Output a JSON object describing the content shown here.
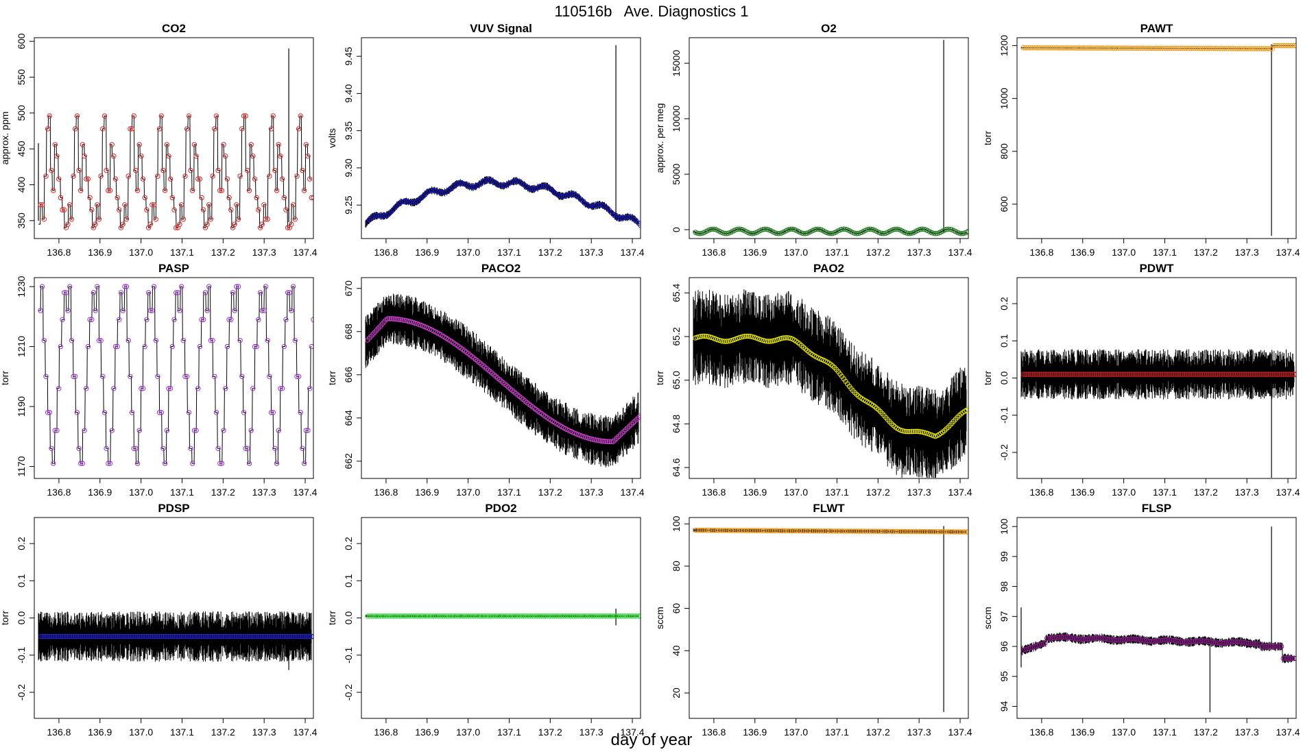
{
  "figure": {
    "title": "110516b   Ave. Diagnostics 1",
    "xlabel": "day of year"
  },
  "chart_data": [
    {
      "type": "line",
      "title": "CO2",
      "ylabel": "approx. ppm",
      "color": "#e02020",
      "xlim": [
        136.74,
        137.42
      ],
      "ylim": [
        325,
        605
      ],
      "yticks": [
        350,
        400,
        450,
        500,
        550,
        600
      ],
      "xticks": [
        136.8,
        136.9,
        137.0,
        137.1,
        137.2,
        137.3,
        137.4
      ],
      "pattern": "co2",
      "base": [
        340,
        500
      ],
      "noise": 0,
      "spikes": [
        {
          "x": 137.36,
          "lo": 348,
          "hi": 590
        },
        {
          "x": 136.75,
          "lo": 350,
          "hi": 458
        }
      ]
    },
    {
      "type": "line",
      "title": "VUV Signal",
      "ylabel": "volts",
      "color": "#1a1ab4",
      "xlim": [
        136.74,
        137.42
      ],
      "ylim": [
        9.205,
        9.475
      ],
      "yticks": [
        9.25,
        9.3,
        9.35,
        9.4,
        9.45
      ],
      "xticks": [
        136.8,
        136.9,
        137.0,
        137.1,
        137.2,
        137.3,
        137.4
      ],
      "pattern": "vuv",
      "noise": 0.004,
      "spikes": [
        {
          "x": 137.36,
          "lo": 9.23,
          "hi": 9.465
        }
      ]
    },
    {
      "type": "line",
      "title": "O2",
      "ylabel": "approx. per meg",
      "color": "#208020",
      "xlim": [
        136.74,
        137.42
      ],
      "ylim": [
        -800,
        17300
      ],
      "yticks": [
        0,
        5000,
        10000,
        15000
      ],
      "xticks": [
        136.8,
        136.9,
        137.0,
        137.1,
        137.2,
        137.3,
        137.4
      ],
      "pattern": "o2",
      "noise": 60,
      "spikes": [
        {
          "x": 137.36,
          "lo": -200,
          "hi": 17100
        }
      ]
    },
    {
      "type": "line",
      "title": "PAWT",
      "ylabel": "torr",
      "color": "#f0a020",
      "xlim": [
        136.74,
        137.42
      ],
      "ylim": [
        470,
        1230
      ],
      "yticks": [
        600,
        800,
        1000,
        1200
      ],
      "xticks": [
        136.8,
        136.9,
        137.0,
        137.1,
        137.2,
        137.3,
        137.4
      ],
      "pattern": "pawt",
      "noise": 1.5,
      "spikes": [
        {
          "x": 137.36,
          "lo": 480,
          "hi": 1205
        }
      ]
    },
    {
      "type": "line",
      "title": "PASP",
      "ylabel": "torr",
      "color": "#9933cc",
      "xlim": [
        136.74,
        137.42
      ],
      "ylim": [
        1166,
        1233
      ],
      "yticks": [
        1170,
        1190,
        1210,
        1230
      ],
      "xticks": [
        136.8,
        136.9,
        137.0,
        137.1,
        137.2,
        137.3,
        137.4
      ],
      "pattern": "pasp",
      "noise": 0,
      "spikes": []
    },
    {
      "type": "line",
      "title": "PACO2",
      "ylabel": "torr",
      "color": "#d040d0",
      "xlim": [
        136.74,
        137.42
      ],
      "ylim": [
        661.2,
        670.5
      ],
      "yticks": [
        662,
        664,
        666,
        668,
        670
      ],
      "xticks": [
        136.8,
        136.9,
        137.0,
        137.1,
        137.2,
        137.3,
        137.4
      ],
      "pattern": "paco2",
      "noise": 0.9,
      "spikes": []
    },
    {
      "type": "line",
      "title": "PAO2",
      "ylabel": "torr",
      "color": "#e6e600",
      "xlim": [
        136.74,
        137.42
      ],
      "ylim": [
        64.55,
        65.47
      ],
      "yticks": [
        64.6,
        64.8,
        65.0,
        65.2,
        65.4
      ],
      "xticks": [
        136.8,
        136.9,
        137.0,
        137.1,
        137.2,
        137.3,
        137.4
      ],
      "pattern": "pao2",
      "noise": 0.16,
      "spikes": []
    },
    {
      "type": "line",
      "title": "PDWT",
      "ylabel": "torr",
      "color": "#c02020",
      "xlim": [
        136.74,
        137.42
      ],
      "ylim": [
        -0.27,
        0.27
      ],
      "yticks": [
        -0.2,
        -0.1,
        0.0,
        0.1,
        0.2
      ],
      "xticks": [
        136.8,
        136.9,
        137.0,
        137.1,
        137.2,
        137.3,
        137.4
      ],
      "pattern": "pdwt",
      "noise": 0.05,
      "spikes": [
        {
          "x": 137.36,
          "lo": -0.27,
          "hi": 0.01
        }
      ]
    },
    {
      "type": "line",
      "title": "PDSP",
      "ylabel": "torr",
      "color": "#2020c0",
      "xlim": [
        136.74,
        137.42
      ],
      "ylim": [
        -0.27,
        0.27
      ],
      "yticks": [
        -0.2,
        -0.1,
        0.0,
        0.1,
        0.2
      ],
      "xticks": [
        136.8,
        136.9,
        137.0,
        137.1,
        137.2,
        137.3,
        137.4
      ],
      "pattern": "pdsp",
      "noise": 0.05,
      "spikes": [
        {
          "x": 137.36,
          "lo": -0.14,
          "hi": -0.04
        }
      ]
    },
    {
      "type": "line",
      "title": "PDO2",
      "ylabel": "torr",
      "color": "#33dd33",
      "xlim": [
        136.74,
        137.42
      ],
      "ylim": [
        -0.27,
        0.27
      ],
      "yticks": [
        -0.2,
        -0.1,
        0.0,
        0.1,
        0.2
      ],
      "xticks": [
        136.8,
        136.9,
        137.0,
        137.1,
        137.2,
        137.3,
        137.4
      ],
      "pattern": "pdo2",
      "noise": 0.002,
      "spikes": [
        {
          "x": 137.36,
          "lo": -0.02,
          "hi": 0.025
        }
      ]
    },
    {
      "type": "line",
      "title": "FLWT",
      "ylabel": "sccm",
      "color": "#f0a020",
      "xlim": [
        136.74,
        137.42
      ],
      "ylim": [
        8,
        103
      ],
      "yticks": [
        20,
        40,
        60,
        80,
        100
      ],
      "xticks": [
        136.8,
        136.9,
        137.0,
        137.1,
        137.2,
        137.3,
        137.4
      ],
      "pattern": "flwt",
      "noise": 0.6,
      "spikes": [
        {
          "x": 137.36,
          "lo": 11,
          "hi": 99
        }
      ]
    },
    {
      "type": "line",
      "title": "FLSP",
      "ylabel": "sccm",
      "color": "#8b1a8b",
      "xlim": [
        136.74,
        137.42
      ],
      "ylim": [
        93.6,
        100.3
      ],
      "yticks": [
        94,
        95,
        96,
        97,
        98,
        99,
        100
      ],
      "xticks": [
        136.8,
        136.9,
        137.0,
        137.1,
        137.2,
        137.3,
        137.4
      ],
      "pattern": "flsp",
      "noise": 0.12,
      "spikes": [
        {
          "x": 137.36,
          "lo": 95.9,
          "hi": 100
        },
        {
          "x": 137.21,
          "lo": 93.8,
          "hi": 96.3
        },
        {
          "x": 136.75,
          "lo": 95.3,
          "hi": 97.3
        }
      ]
    }
  ]
}
